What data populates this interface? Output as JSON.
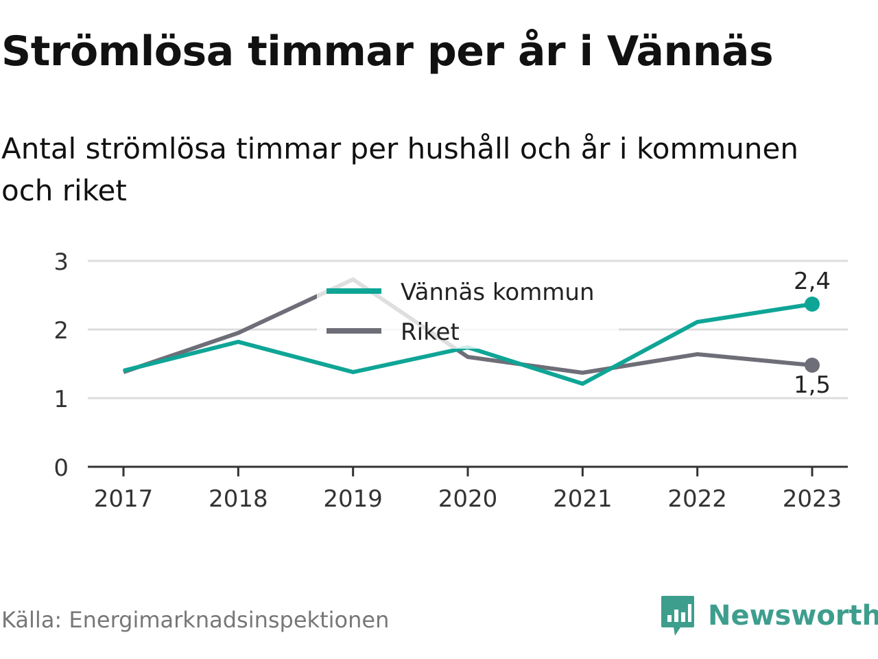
{
  "title": "Strömlösa timmar per år i Vännäs",
  "subtitle": "Antal strömlösa timmar per hushåll och år i kommunen och riket",
  "source": "Källa: Energimarknadsinspektionen",
  "brand": {
    "name": "Newsworthy",
    "icon": "newsworthy-logo-icon",
    "color": "#3e9e8e"
  },
  "chart_data": {
    "type": "line",
    "x": [
      "2017",
      "2018",
      "2019",
      "2020",
      "2021",
      "2022",
      "2023"
    ],
    "ylim": [
      0,
      3
    ],
    "yticks": [
      "0",
      "1",
      "2",
      "3"
    ],
    "grid": true,
    "legend_position": "top-center",
    "series": [
      {
        "name": "Vännäs kommun",
        "color": "#0fa596",
        "values": [
          1.4,
          1.82,
          1.38,
          1.74,
          1.21,
          2.11,
          2.37
        ],
        "end_label": "2,4"
      },
      {
        "name": "Riket",
        "color": "#6e6e78",
        "values": [
          1.38,
          1.95,
          2.73,
          1.6,
          1.37,
          1.64,
          1.48
        ],
        "end_label": "1,5"
      }
    ]
  }
}
